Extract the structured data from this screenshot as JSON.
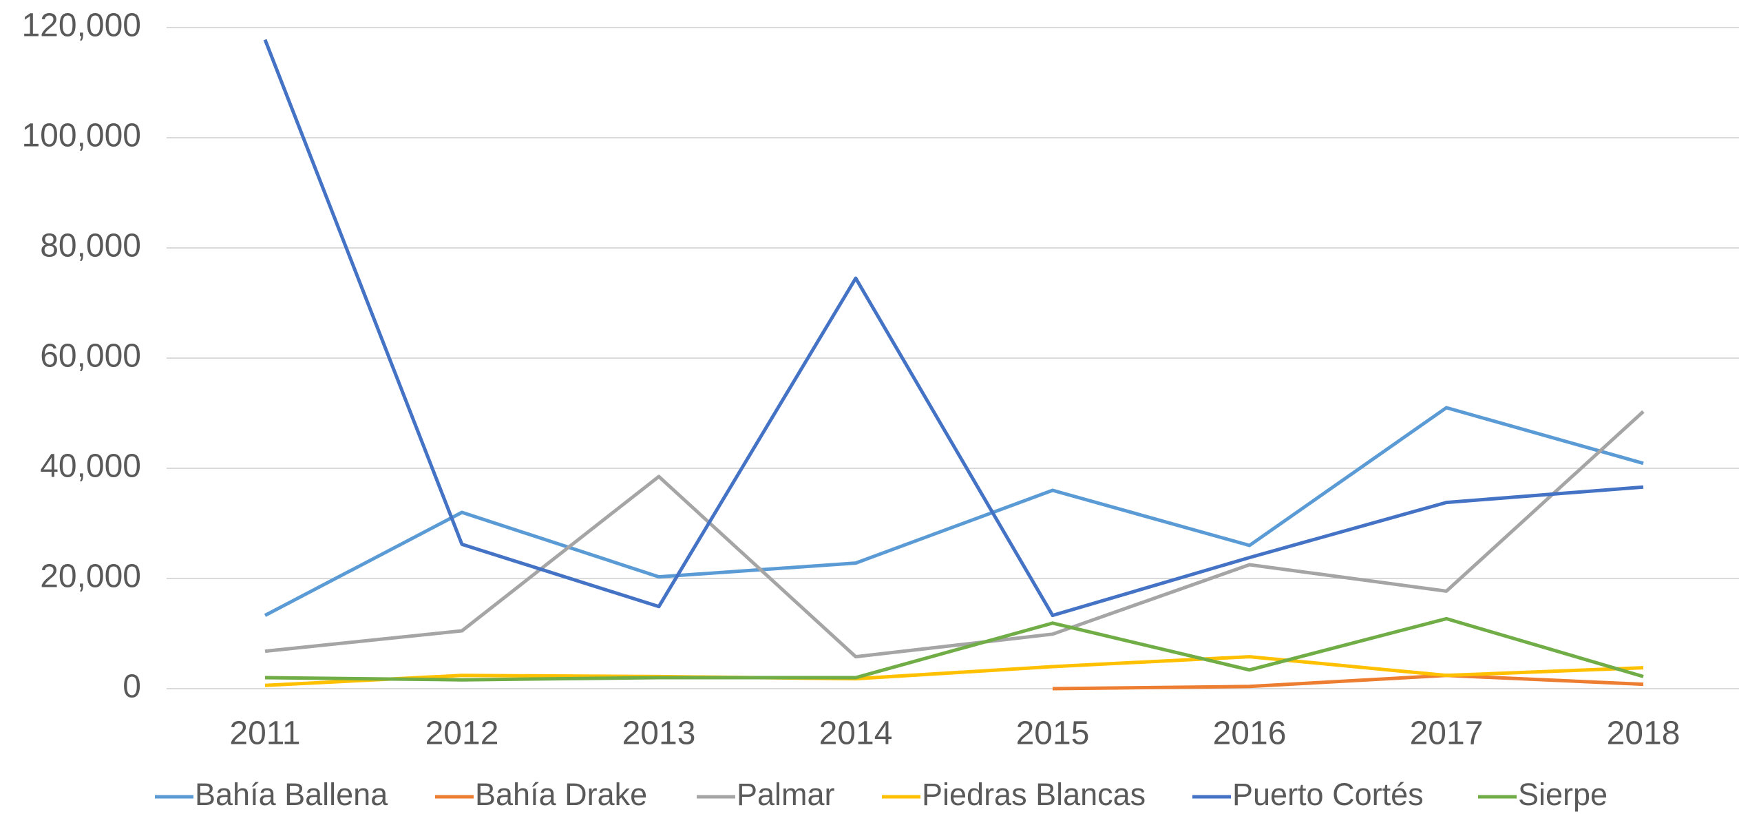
{
  "chart_data": {
    "type": "line",
    "categories": [
      "2011",
      "2012",
      "2013",
      "2014",
      "2015",
      "2016",
      "2017",
      "2018"
    ],
    "series": [
      {
        "name": "Bahía Ballena",
        "color": "#5b9bd5",
        "values": [
          13300,
          32000,
          20300,
          22800,
          36000,
          26000,
          51000,
          40900
        ]
      },
      {
        "name": "Bahía Drake",
        "color": "#ed7d31",
        "values": [
          null,
          null,
          null,
          null,
          0,
          400,
          2400,
          800
        ]
      },
      {
        "name": "Palmar",
        "color": "#a5a5a5",
        "values": [
          6800,
          10500,
          38500,
          5800,
          9900,
          22500,
          17700,
          50300
        ]
      },
      {
        "name": "Piedras Blancas",
        "color": "#ffc000",
        "values": [
          600,
          2400,
          2200,
          1800,
          4000,
          5800,
          2400,
          3800
        ]
      },
      {
        "name": "Puerto Cortés",
        "color": "#4472c4",
        "values": [
          117800,
          26200,
          14900,
          74500,
          13300,
          23800,
          33800,
          36600
        ]
      },
      {
        "name": "Sierpe",
        "color": "#70ad47",
        "values": [
          2000,
          1600,
          2000,
          2000,
          11900,
          3400,
          12700,
          2200
        ]
      }
    ],
    "ylim": [
      0,
      120000
    ],
    "yticks": [
      0,
      {
        "value": 20000,
        "label": "20,000"
      },
      {
        "value": 40000,
        "label": "40,000"
      },
      {
        "value": 60000,
        "label": "60,000"
      },
      {
        "value": 80000,
        "label": "80,000"
      },
      {
        "value": 100000,
        "label": "100,000"
      },
      {
        "value": 120000,
        "label": "120,000"
      }
    ],
    "grid": true,
    "legend": "bottom"
  }
}
